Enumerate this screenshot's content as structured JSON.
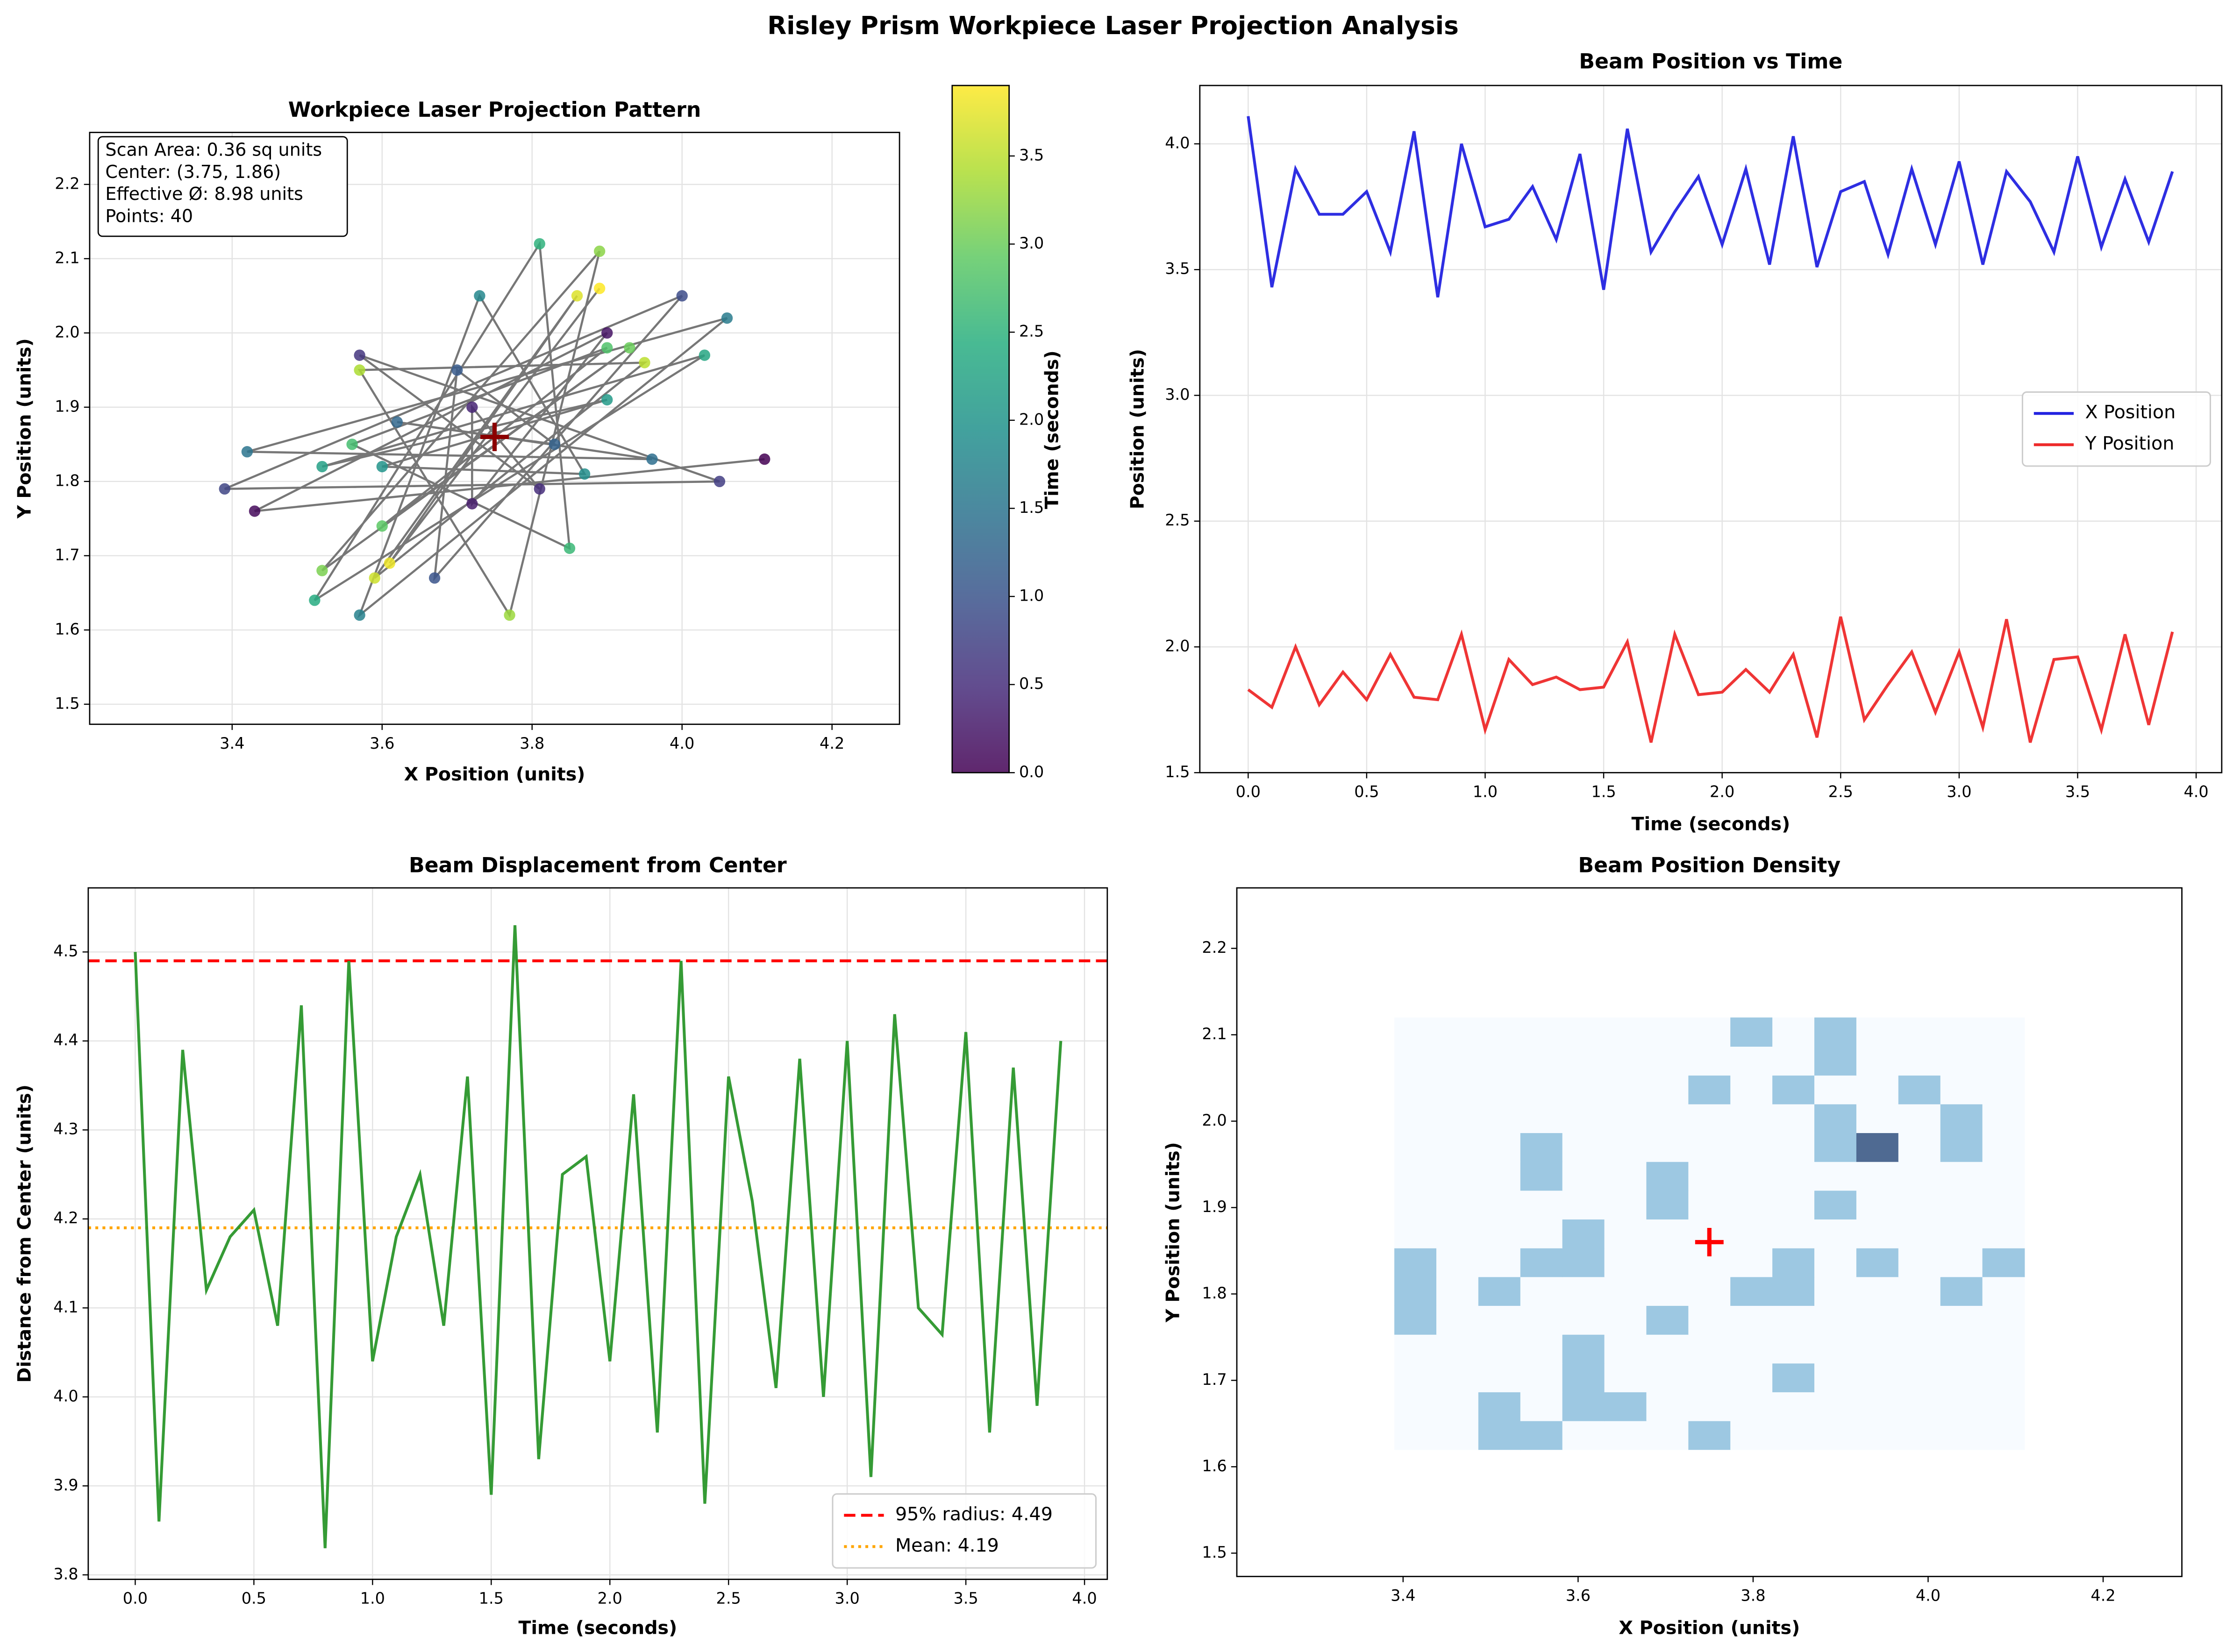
{
  "title": "Risley Prism Workpiece Laser Projection Analysis",
  "chart_data": [
    {
      "type": "scatter",
      "title": "Workpiece Laser Projection Pattern",
      "xlabel": "X Position (units)",
      "ylabel": "Y Position (units)",
      "x": [
        4.11,
        3.43,
        3.9,
        3.72,
        3.72,
        3.81,
        3.57,
        4.05,
        3.39,
        4.0,
        3.67,
        3.7,
        3.83,
        3.62,
        3.96,
        3.42,
        4.06,
        3.57,
        3.73,
        3.87,
        3.6,
        3.9,
        3.52,
        4.03,
        3.51,
        3.81,
        3.85,
        3.56,
        3.9,
        3.6,
        3.93,
        3.52,
        3.89,
        3.77,
        3.57,
        3.95,
        3.59,
        3.86,
        3.61,
        3.89
      ],
      "y": [
        1.83,
        1.76,
        2.0,
        1.77,
        1.9,
        1.79,
        1.97,
        1.8,
        1.79,
        2.05,
        1.67,
        1.95,
        1.85,
        1.88,
        1.83,
        1.84,
        2.02,
        1.62,
        2.05,
        1.81,
        1.82,
        1.91,
        1.82,
        1.97,
        1.64,
        2.12,
        1.71,
        1.85,
        1.98,
        1.74,
        1.98,
        1.68,
        2.11,
        1.62,
        1.95,
        1.96,
        1.67,
        2.05,
        1.69,
        2.06
      ],
      "c": [
        0,
        0.1,
        0.2,
        0.3,
        0.4,
        0.5,
        0.6,
        0.7,
        0.8,
        0.9,
        1.0,
        1.1,
        1.2,
        1.3,
        1.4,
        1.5,
        1.6,
        1.7,
        1.8,
        1.9,
        2.0,
        2.1,
        2.2,
        2.3,
        2.4,
        2.5,
        2.6,
        2.7,
        2.8,
        2.9,
        3.0,
        3.1,
        3.2,
        3.3,
        3.4,
        3.5,
        3.6,
        3.7,
        3.8,
        3.9
      ],
      "colormap": "viridis",
      "line_color": "#777777",
      "center": [
        3.75,
        1.86
      ],
      "center_color": "#8b0000",
      "colorbar_label": "Time (seconds)",
      "clim": [
        0,
        3.9
      ],
      "cticks": [
        {
          "value": 0,
          "label": "0.0"
        },
        0.5,
        {
          "value": 1,
          "label": "1.0"
        },
        1.5,
        {
          "value": 2,
          "label": "2.0"
        },
        2.5,
        {
          "value": 3,
          "label": "3.0"
        },
        3.5
      ],
      "annotations": [
        "Scan Area: 0.36 sq units",
        "Center: (3.75, 1.86)",
        "Effective Ø: 8.98 units",
        "Points: 40"
      ],
      "xlim": [
        3.21,
        4.29
      ],
      "xticks": [
        3.4,
        3.6,
        3.8,
        {
          "value": 4,
          "label": "4.0"
        },
        4.2
      ],
      "ylim": [
        1.473,
        2.27
      ],
      "yticks": [
        1.5,
        1.6,
        1.7,
        1.8,
        1.9,
        {
          "value": 2,
          "label": "2.0"
        },
        2.1,
        2.2
      ],
      "grid": true
    },
    {
      "type": "line",
      "title": "Beam Position vs Time",
      "xlabel": "Time (seconds)",
      "ylabel": "Position (units)",
      "x": [
        0,
        0.1,
        0.2,
        0.3,
        0.4,
        0.5,
        0.6,
        0.7,
        0.8,
        0.9,
        1.0,
        1.1,
        1.2,
        1.3,
        1.4,
        1.5,
        1.6,
        1.7,
        1.8,
        1.9,
        2.0,
        2.1,
        2.2,
        2.3,
        2.4,
        2.5,
        2.6,
        2.7,
        2.8,
        2.9,
        3.0,
        3.1,
        3.2,
        3.3,
        3.4,
        3.5,
        3.6,
        3.7,
        3.8,
        3.9
      ],
      "series": [
        {
          "name": "X Position",
          "color": "#2323e0",
          "values": [
            4.11,
            3.43,
            3.9,
            3.72,
            3.72,
            3.81,
            3.57,
            4.05,
            3.39,
            4.0,
            3.67,
            3.7,
            3.83,
            3.62,
            3.96,
            3.42,
            4.06,
            3.57,
            3.73,
            3.87,
            3.6,
            3.9,
            3.52,
            4.03,
            3.51,
            3.81,
            3.85,
            3.56,
            3.9,
            3.6,
            3.93,
            3.52,
            3.89,
            3.77,
            3.57,
            3.95,
            3.59,
            3.86,
            3.61,
            3.89
          ]
        },
        {
          "name": "Y Position",
          "color": "#ee2a2a",
          "values": [
            1.83,
            1.76,
            2.0,
            1.77,
            1.9,
            1.79,
            1.97,
            1.8,
            1.79,
            2.05,
            1.67,
            1.95,
            1.85,
            1.88,
            1.83,
            1.84,
            2.02,
            1.62,
            2.05,
            1.81,
            1.82,
            1.91,
            1.82,
            1.97,
            1.64,
            2.12,
            1.71,
            1.85,
            1.98,
            1.74,
            1.98,
            1.68,
            2.11,
            1.62,
            1.95,
            1.96,
            1.67,
            2.05,
            1.69,
            2.06
          ]
        }
      ],
      "legend": "center right",
      "xlim": [
        -0.204,
        4.108
      ],
      "xticks": [
        {
          "value": 0,
          "label": "0.0"
        },
        0.5,
        {
          "value": 1,
          "label": "1.0"
        },
        1.5,
        {
          "value": 2,
          "label": "2.0"
        },
        2.5,
        {
          "value": 3,
          "label": "3.0"
        },
        3.5,
        {
          "value": 4,
          "label": "4.0"
        }
      ],
      "ylim": [
        1.5,
        4.232
      ],
      "yticks": [
        1.5,
        {
          "value": 2,
          "label": "2.0"
        },
        2.5,
        {
          "value": 3,
          "label": "3.0"
        },
        3.5,
        {
          "value": 4,
          "label": "4.0"
        }
      ],
      "grid": true
    },
    {
      "type": "line",
      "title": "Beam Displacement from Center",
      "xlabel": "Time (seconds)",
      "ylabel": "Distance from Center (units)",
      "x": [
        0,
        0.1,
        0.2,
        0.3,
        0.4,
        0.5,
        0.6,
        0.7,
        0.8,
        0.9,
        1.0,
        1.1,
        1.2,
        1.3,
        1.4,
        1.5,
        1.6,
        1.7,
        1.8,
        1.9,
        2.0,
        2.1,
        2.2,
        2.3,
        2.4,
        2.5,
        2.6,
        2.7,
        2.8,
        2.9,
        3.0,
        3.1,
        3.2,
        3.3,
        3.4,
        3.5,
        3.6,
        3.7,
        3.8,
        3.9
      ],
      "series": [
        {
          "color": "#2a962a",
          "values": [
            4.5,
            3.86,
            4.39,
            4.12,
            4.18,
            4.21,
            4.08,
            4.44,
            3.83,
            4.49,
            4.04,
            4.18,
            4.25,
            4.08,
            4.36,
            3.89,
            4.53,
            3.93,
            4.25,
            4.27,
            4.04,
            4.34,
            3.96,
            4.49,
            3.88,
            4.36,
            4.22,
            4.01,
            4.38,
            4.0,
            4.4,
            3.91,
            4.43,
            4.1,
            4.07,
            4.41,
            3.96,
            4.37,
            3.99,
            4.4
          ]
        }
      ],
      "hlines": [
        {
          "value": 4.49,
          "name": "95% radius: 4.49",
          "color": "#ff0000",
          "style": "dashed"
        },
        {
          "value": 4.19,
          "name": "Mean: 4.19",
          "color": "#ffa500",
          "style": "dotted"
        }
      ],
      "legend": "lower right",
      "xlim": [
        -0.198,
        4.096
      ],
      "xticks": [
        {
          "value": 0,
          "label": "0.0"
        },
        0.5,
        {
          "value": 1,
          "label": "1.0"
        },
        1.5,
        {
          "value": 2,
          "label": "2.0"
        },
        2.5,
        {
          "value": 3,
          "label": "3.0"
        },
        3.5,
        {
          "value": 4,
          "label": "4.0"
        }
      ],
      "ylim": [
        3.795,
        4.572
      ],
      "yticks": [
        3.8,
        3.9,
        {
          "value": 4,
          "label": "4.0"
        },
        4.1,
        4.2,
        4.3,
        4.4,
        4.5
      ],
      "grid": true
    },
    {
      "type": "heatmap",
      "title": "Beam Position Density",
      "xlabel": "X Position (units)",
      "ylabel": "Y Position (units)",
      "xbins": [
        3.39,
        3.438,
        3.486,
        3.534,
        3.582,
        3.63,
        3.678,
        3.726,
        3.774,
        3.822,
        3.87,
        3.918,
        3.966,
        4.014,
        4.062,
        4.11
      ],
      "ybins": [
        1.62,
        1.6533,
        1.6867,
        1.72,
        1.7533,
        1.7867,
        1.82,
        1.8533,
        1.8867,
        1.92,
        1.9533,
        1.9867,
        2.02,
        2.0533,
        2.0867,
        2.12
      ],
      "counts": [
        [
          0,
          0,
          1,
          1,
          0,
          0,
          0,
          1,
          0,
          0,
          0,
          0,
          0,
          0,
          0
        ],
        [
          0,
          0,
          1,
          0,
          1,
          1,
          0,
          0,
          0,
          0,
          0,
          0,
          0,
          0,
          0
        ],
        [
          0,
          0,
          0,
          0,
          1,
          0,
          0,
          0,
          0,
          1,
          0,
          0,
          0,
          0,
          0
        ],
        [
          0,
          0,
          0,
          0,
          1,
          0,
          0,
          0,
          0,
          0,
          0,
          0,
          0,
          0,
          0
        ],
        [
          1,
          0,
          0,
          0,
          0,
          0,
          1,
          0,
          0,
          0,
          0,
          0,
          0,
          0,
          0
        ],
        [
          1,
          0,
          1,
          0,
          0,
          0,
          0,
          0,
          1,
          1,
          0,
          0,
          0,
          1,
          0
        ],
        [
          1,
          0,
          0,
          1,
          1,
          0,
          0,
          0,
          0,
          1,
          0,
          1,
          0,
          0,
          1
        ],
        [
          0,
          0,
          0,
          0,
          1,
          0,
          0,
          0,
          0,
          0,
          0,
          0,
          0,
          0,
          0
        ],
        [
          0,
          0,
          0,
          0,
          0,
          0,
          1,
          0,
          0,
          0,
          1,
          0,
          0,
          0,
          0
        ],
        [
          0,
          0,
          0,
          1,
          0,
          0,
          1,
          0,
          0,
          0,
          0,
          0,
          0,
          0,
          0
        ],
        [
          0,
          0,
          0,
          1,
          0,
          0,
          0,
          0,
          0,
          0,
          1,
          2,
          0,
          1,
          0
        ],
        [
          0,
          0,
          0,
          0,
          0,
          0,
          0,
          0,
          0,
          0,
          1,
          0,
          0,
          1,
          0
        ],
        [
          0,
          0,
          0,
          0,
          0,
          0,
          0,
          1,
          0,
          1,
          0,
          0,
          1,
          0,
          0
        ],
        [
          0,
          0,
          0,
          0,
          0,
          0,
          0,
          0,
          0,
          0,
          1,
          0,
          0,
          0,
          0
        ],
        [
          0,
          0,
          0,
          0,
          0,
          0,
          0,
          0,
          1,
          0,
          1,
          0,
          0,
          0,
          0
        ]
      ],
      "color_scale": [
        "#f7fbff",
        "#9dc8e2",
        "#4f6a92"
      ],
      "center": [
        3.75,
        1.86
      ],
      "center_color": "#ff0000",
      "xlim": [
        3.21,
        4.29
      ],
      "xticks": [
        3.4,
        3.6,
        3.8,
        {
          "value": 4,
          "label": "4.0"
        },
        4.2
      ],
      "ylim": [
        1.473,
        2.27
      ],
      "yticks": [
        1.5,
        1.6,
        1.7,
        1.8,
        1.9,
        {
          "value": 2,
          "label": "2.0"
        },
        2.1,
        2.2
      ],
      "grid": false
    }
  ]
}
